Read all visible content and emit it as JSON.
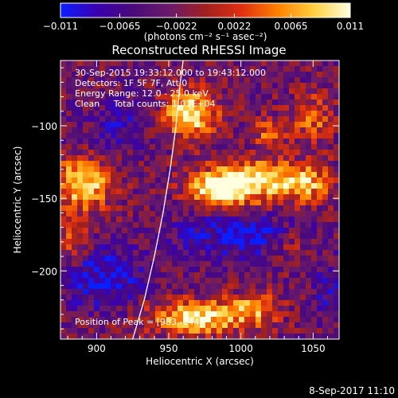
{
  "colorbar": {
    "range": [
      -0.011,
      0.011
    ],
    "tick_labels": [
      "−0.011",
      "−0.0065",
      "−0.0022",
      "0.0022",
      "0.0065",
      "0.011"
    ],
    "tick_values": [
      -0.011,
      -0.0065,
      -0.0022,
      0.0022,
      0.0065,
      0.011
    ],
    "unit_label": "(photons cm⁻² s⁻¹ asec⁻²)",
    "colors": [
      "#0a1fff",
      "#3a00b0",
      "#4a0a7a",
      "#6a1a6a",
      "#a02020",
      "#e03010",
      "#ff8000",
      "#ffd040",
      "#ffffe0"
    ]
  },
  "chart_data": {
    "type": "heatmap",
    "title": "Reconstructed RHESSI Image",
    "xlabel": "Heliocentric X (arcsec)",
    "ylabel": "Heliocentric Y (arcsec)",
    "xlim": [
      875,
      1068
    ],
    "ylim": [
      -247,
      -55
    ],
    "x_ticks": [
      900,
      950,
      1000,
      1050
    ],
    "x_tick_labels": [
      "900",
      "950",
      "1000",
      "1050"
    ],
    "y_ticks": [
      -100,
      -150,
      -200
    ],
    "y_tick_labels": [
      "−100",
      "−150",
      "−200"
    ],
    "annotations": [
      "30-Sep-2015 19:33:12.000 to 19:43:12.000",
      "Detectors: 1F 5F 7F, Att 0",
      "Energy Range: 12.0 - 25.0 keV",
      "Clean     Total counts: 1.01E+04"
    ],
    "peak_label": "Position of Peak = [983,-144]",
    "peak": [
      983,
      -144
    ],
    "limb_curve": [
      [
        925,
        -247
      ],
      [
        933,
        -220
      ],
      [
        940,
        -190
      ],
      [
        946,
        -160
      ],
      [
        951,
        -130
      ],
      [
        955,
        -100
      ],
      [
        958,
        -70
      ],
      [
        960,
        -55
      ]
    ],
    "sources": [
      {
        "x": 965,
        "y": -92,
        "sx": 13,
        "sy": 11,
        "amp": 1.0
      },
      {
        "x": 1008,
        "y": -138,
        "sx": 26,
        "sy": 10,
        "amp": 0.92
      },
      {
        "x": 985,
        "y": -146,
        "sx": 14,
        "sy": 8,
        "amp": 0.75
      },
      {
        "x": 1045,
        "y": -140,
        "sx": 12,
        "sy": 9,
        "amp": 0.55
      },
      {
        "x": 1050,
        "y": -95,
        "sx": 10,
        "sy": 12,
        "amp": 0.5
      },
      {
        "x": 890,
        "y": -140,
        "sx": 14,
        "sy": 12,
        "amp": 0.95
      },
      {
        "x": 883,
        "y": -180,
        "sx": 8,
        "sy": 12,
        "amp": 0.45
      },
      {
        "x": 970,
        "y": -232,
        "sx": 24,
        "sy": 8,
        "amp": 0.95
      },
      {
        "x": 1010,
        "y": -225,
        "sx": 12,
        "sy": 8,
        "amp": 0.55
      },
      {
        "x": 1020,
        "y": -105,
        "sx": 8,
        "sy": 8,
        "amp": 0.5
      },
      {
        "x": 1035,
        "y": -180,
        "sx": 8,
        "sy": 8,
        "amp": 0.35
      }
    ],
    "negative_regions": [
      {
        "x": 1000,
        "y": -175,
        "sx": 30,
        "sy": 10,
        "amp": 0.55
      },
      {
        "x": 905,
        "y": -205,
        "sx": 20,
        "sy": 14,
        "amp": 0.55
      },
      {
        "x": 915,
        "y": -100,
        "sx": 14,
        "sy": 12,
        "amp": 0.35
      },
      {
        "x": 1060,
        "y": -215,
        "sx": 8,
        "sy": 14,
        "amp": 0.3
      }
    ]
  },
  "footer": {
    "timestamp": "8-Sep-2017 11:10"
  }
}
